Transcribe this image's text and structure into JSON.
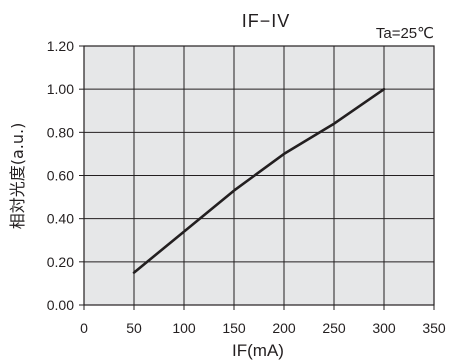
{
  "chart_data": {
    "type": "line",
    "title": "IF−IV",
    "condition": "Ta=25℃",
    "xlabel": "IF(mA)",
    "ylabel": "相対光度(a.u.)",
    "xlim": [
      0,
      350
    ],
    "ylim": [
      0.0,
      1.2
    ],
    "x_ticks": [
      "0",
      "50",
      "100",
      "150",
      "200",
      "250",
      "300",
      "350"
    ],
    "y_ticks": [
      "0.00",
      "0.20",
      "0.40",
      "0.60",
      "0.80",
      "1.00",
      "1.20"
    ],
    "grid": true,
    "background": "#e6e7e8",
    "line_color": "#231f20",
    "series": [
      {
        "x": [
          50,
          100,
          150,
          200,
          250,
          300
        ],
        "y": [
          0.15,
          0.34,
          0.53,
          0.7,
          0.84,
          1.0
        ]
      }
    ]
  }
}
